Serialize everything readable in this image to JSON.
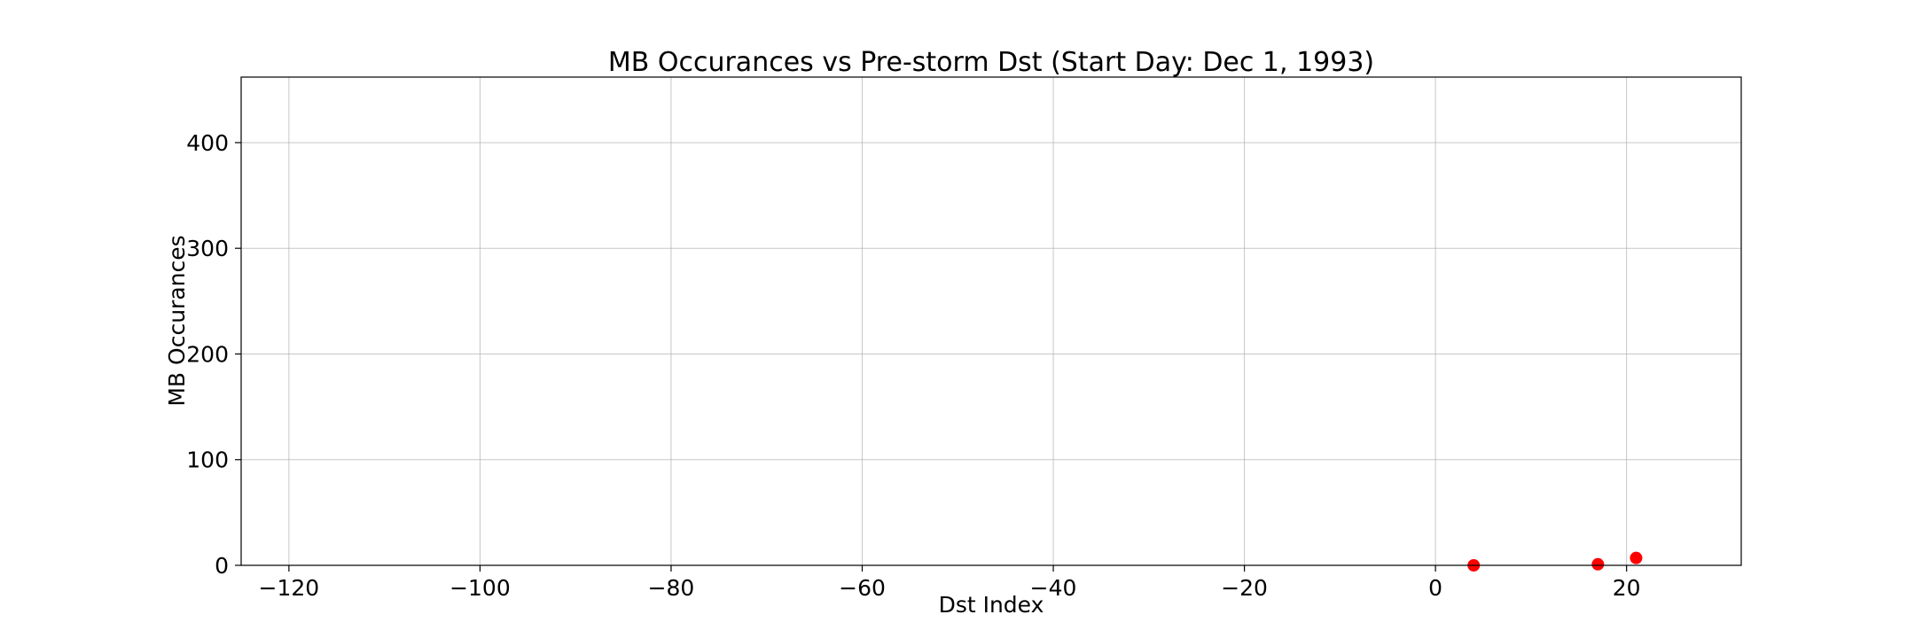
{
  "chart_data": {
    "type": "scatter",
    "title": "MB Occurances vs Pre-storm Dst (Start Day: Dec 1, 1993)",
    "xlabel": "Dst Index",
    "ylabel": "MB Occurances",
    "xlim": [
      -125,
      32
    ],
    "ylim": [
      0,
      462
    ],
    "xticks": [
      -120,
      -100,
      -80,
      -60,
      -40,
      -20,
      0,
      20
    ],
    "xtick_labels": [
      "−120",
      "−100",
      "−80",
      "−60",
      "−40",
      "−20",
      "0",
      "20"
    ],
    "yticks": [
      0,
      100,
      200,
      300,
      400
    ],
    "ytick_labels": [
      "0",
      "100",
      "200",
      "300",
      "400"
    ],
    "grid": true,
    "marker_color": "#ff0000",
    "points": [
      {
        "x": 4,
        "y": 0
      },
      {
        "x": 17,
        "y": 1
      },
      {
        "x": 21,
        "y": 7
      }
    ]
  }
}
